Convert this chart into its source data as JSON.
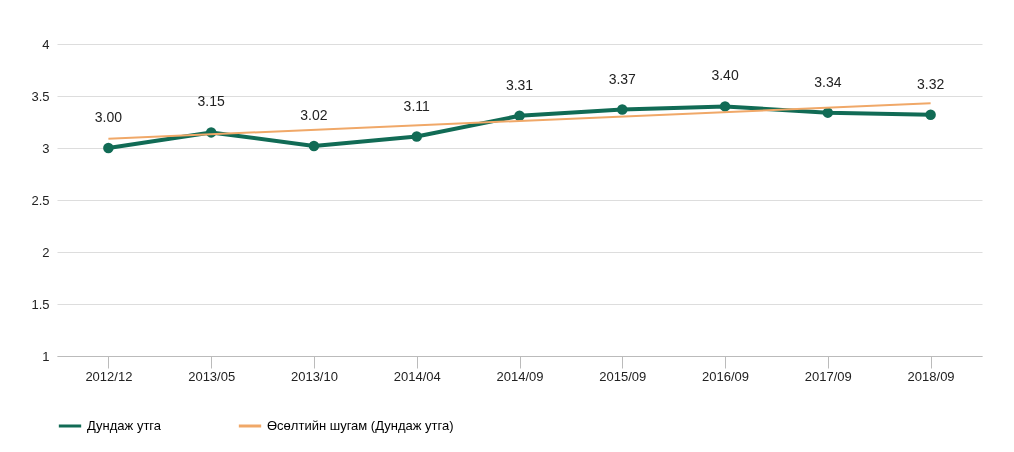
{
  "chart_data": {
    "type": "line",
    "categories": [
      "2012/12",
      "2013/05",
      "2013/10",
      "2014/04",
      "2014/09",
      "2015/09",
      "2016/09",
      "2017/09",
      "2018/09"
    ],
    "series": [
      {
        "name": "Дундаж утга",
        "color": "#116b55",
        "values": [
          3.0,
          3.15,
          3.02,
          3.11,
          3.31,
          3.37,
          3.4,
          3.34,
          3.32
        ],
        "value_labels": [
          "3.00",
          "3.15",
          "3.02",
          "3.11",
          "3.31",
          "3.37",
          "3.40",
          "3.34",
          "3.32"
        ],
        "marker": "circle"
      },
      {
        "name": "Өсөлтийн шугам (Дундаж утга)",
        "color": "#f0a868",
        "type": "line",
        "x": [
          "2012/12",
          "2018/09"
        ],
        "values": [
          3.09,
          3.43
        ],
        "marker": "none"
      }
    ],
    "ylim": [
      1,
      4
    ],
    "yticks": [
      1,
      1.5,
      2,
      2.5,
      3,
      3.5,
      4
    ],
    "grid": "y",
    "legend": "bottom",
    "line_style": "solid"
  }
}
